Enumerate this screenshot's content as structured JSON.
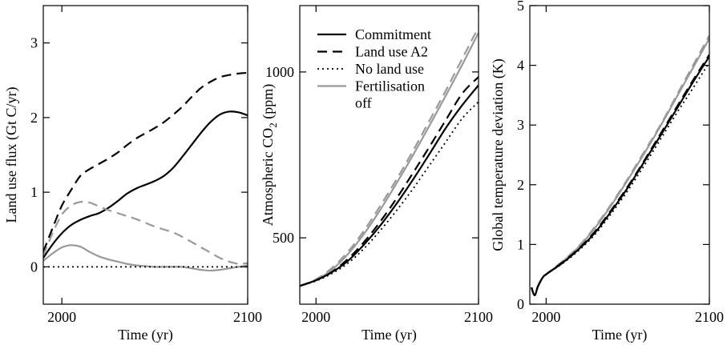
{
  "chart_data": [
    {
      "type": "line",
      "panel": "land-use-flux",
      "xlabel": "Time (yr)",
      "ylabel": "Land use flux (Gt C/yr)",
      "xlim": [
        1990,
        2100
      ],
      "ylim": [
        -0.5,
        3.5
      ],
      "xticks": [
        2000,
        2100
      ],
      "yticks": [
        0,
        1,
        2,
        3
      ],
      "series": [
        {
          "name": "Land use A2",
          "style": "dashed",
          "color": "#000000",
          "x": [
            1990,
            1995,
            2000,
            2005,
            2010,
            2015,
            2020,
            2025,
            2030,
            2035,
            2040,
            2045,
            2050,
            2055,
            2060,
            2065,
            2070,
            2075,
            2080,
            2085,
            2090,
            2095,
            2100
          ],
          "y": [
            0.2,
            0.52,
            0.82,
            1.03,
            1.22,
            1.31,
            1.38,
            1.45,
            1.53,
            1.63,
            1.72,
            1.79,
            1.86,
            1.94,
            2.04,
            2.15,
            2.28,
            2.4,
            2.48,
            2.54,
            2.57,
            2.59,
            2.6
          ]
        },
        {
          "name": "Commitment",
          "style": "solid",
          "color": "#000000",
          "x": [
            1990,
            1995,
            2000,
            2005,
            2010,
            2015,
            2020,
            2025,
            2030,
            2035,
            2040,
            2045,
            2050,
            2055,
            2060,
            2065,
            2070,
            2075,
            2080,
            2085,
            2090,
            2095,
            2100
          ],
          "y": [
            0.12,
            0.3,
            0.45,
            0.56,
            0.63,
            0.68,
            0.72,
            0.79,
            0.88,
            0.98,
            1.05,
            1.1,
            1.15,
            1.22,
            1.33,
            1.48,
            1.64,
            1.8,
            1.94,
            2.04,
            2.08,
            2.07,
            2.03
          ]
        },
        {
          "name": "Fertilisation off (land use A2)",
          "style": "dashed",
          "color": "#999999",
          "x": [
            1990,
            1995,
            2000,
            2005,
            2010,
            2015,
            2020,
            2025,
            2030,
            2035,
            2040,
            2045,
            2050,
            2055,
            2060,
            2065,
            2070,
            2075,
            2080,
            2085,
            2090,
            2095,
            2100
          ],
          "y": [
            0.15,
            0.45,
            0.7,
            0.82,
            0.87,
            0.86,
            0.81,
            0.76,
            0.72,
            0.68,
            0.64,
            0.59,
            0.54,
            0.5,
            0.46,
            0.4,
            0.33,
            0.26,
            0.19,
            0.12,
            0.07,
            0.04,
            0.05
          ]
        },
        {
          "name": "Fertilisation off",
          "style": "solid",
          "color": "#999999",
          "x": [
            1990,
            1995,
            2000,
            2005,
            2010,
            2015,
            2020,
            2025,
            2030,
            2035,
            2040,
            2045,
            2050,
            2055,
            2060,
            2065,
            2070,
            2075,
            2080,
            2085,
            2090,
            2095,
            2100
          ],
          "y": [
            0.08,
            0.18,
            0.26,
            0.29,
            0.27,
            0.2,
            0.14,
            0.1,
            0.07,
            0.04,
            0.02,
            0.01,
            0.0,
            0.0,
            0.0,
            0.0,
            -0.02,
            -0.04,
            -0.05,
            -0.04,
            -0.02,
            0.0,
            0.02
          ]
        },
        {
          "name": "No land use",
          "style": "dotted",
          "color": "#000000",
          "x": [
            1990,
            2100
          ],
          "y": [
            0,
            0
          ]
        }
      ]
    },
    {
      "type": "line",
      "panel": "co2",
      "xlabel": "Time (yr)",
      "ylabel_main": "Atmospheric CO",
      "ylabel_sub": "2",
      "ylabel_unit": " (ppm)",
      "xlim": [
        1990,
        2100
      ],
      "ylim": [
        300,
        1200
      ],
      "xticks": [
        2000,
        2100
      ],
      "yticks": [
        500,
        1000
      ],
      "legend": {
        "position": "top-left",
        "entries": [
          {
            "label": "Commitment",
            "style": "solid",
            "color": "#000000"
          },
          {
            "label": "Land use A2",
            "style": "dashed",
            "color": "#000000"
          },
          {
            "label": "No land use",
            "style": "dotted",
            "color": "#000000"
          },
          {
            "label_line1": "Fertilisation",
            "label_line2": "off",
            "style": "solid",
            "color": "#999999"
          }
        ]
      },
      "series": [
        {
          "name": "Fertilisation off (land use A2)",
          "style": "dashed",
          "color": "#999999",
          "x": [
            1990,
            2000,
            2010,
            2020,
            2030,
            2040,
            2050,
            2060,
            2070,
            2080,
            2090,
            2100
          ],
          "y": [
            355,
            375,
            410,
            460,
            525,
            600,
            680,
            765,
            855,
            945,
            1040,
            1135
          ]
        },
        {
          "name": "Fertilisation off",
          "style": "solid",
          "color": "#999999",
          "x": [
            1990,
            2000,
            2010,
            2020,
            2030,
            2040,
            2050,
            2060,
            2070,
            2080,
            2090,
            2100
          ],
          "y": [
            355,
            373,
            405,
            453,
            515,
            588,
            668,
            752,
            840,
            930,
            1022,
            1118
          ]
        },
        {
          "name": "Land use A2",
          "style": "dashed",
          "color": "#000000",
          "x": [
            1990,
            2000,
            2010,
            2020,
            2030,
            2040,
            2050,
            2060,
            2070,
            2080,
            2090,
            2100
          ],
          "y": [
            355,
            372,
            398,
            438,
            490,
            552,
            622,
            698,
            776,
            856,
            935,
            985
          ]
        },
        {
          "name": "Commitment",
          "style": "solid",
          "color": "#000000",
          "x": [
            1990,
            2000,
            2010,
            2020,
            2030,
            2040,
            2050,
            2060,
            2070,
            2080,
            2090,
            2100
          ],
          "y": [
            355,
            372,
            397,
            432,
            482,
            540,
            606,
            678,
            754,
            832,
            900,
            960
          ]
        },
        {
          "name": "No land use",
          "style": "dotted",
          "color": "#000000",
          "x": [
            1990,
            2000,
            2010,
            2020,
            2030,
            2040,
            2050,
            2060,
            2070,
            2080,
            2090,
            2100
          ],
          "y": [
            355,
            370,
            393,
            425,
            470,
            525,
            585,
            650,
            720,
            790,
            860,
            910
          ]
        }
      ]
    },
    {
      "type": "line",
      "panel": "temperature",
      "xlabel": "Time (yr)",
      "ylabel": "Global temperature deviation (K)",
      "xlim": [
        1990,
        2100
      ],
      "ylim": [
        0,
        5
      ],
      "xticks": [
        2000,
        2100
      ],
      "yticks": [
        0,
        1,
        2,
        3,
        4,
        5
      ],
      "series": [
        {
          "name": "Fertilisation off (land use A2)",
          "style": "dashed",
          "color": "#999999",
          "x": [
            1991,
            1993,
            1995,
            1998,
            2000,
            2010,
            2020,
            2030,
            2040,
            2050,
            2060,
            2070,
            2080,
            2090,
            2100
          ],
          "y": [
            0.28,
            0.15,
            0.3,
            0.45,
            0.5,
            0.72,
            0.97,
            1.3,
            1.68,
            2.1,
            2.55,
            3.0,
            3.5,
            4.0,
            4.5
          ]
        },
        {
          "name": "Fertilisation off",
          "style": "solid",
          "color": "#999999",
          "x": [
            1991,
            1993,
            1995,
            1998,
            2000,
            2010,
            2020,
            2030,
            2040,
            2050,
            2060,
            2070,
            2080,
            2090,
            2100
          ],
          "y": [
            0.28,
            0.15,
            0.3,
            0.45,
            0.5,
            0.71,
            0.96,
            1.28,
            1.66,
            2.08,
            2.52,
            2.98,
            3.47,
            3.96,
            4.45
          ]
        },
        {
          "name": "Land use A2",
          "style": "dashed",
          "color": "#000000",
          "x": [
            1991,
            1993,
            1995,
            1998,
            2000,
            2010,
            2020,
            2030,
            2040,
            2050,
            2060,
            2070,
            2080,
            2090,
            2100
          ],
          "y": [
            0.28,
            0.15,
            0.3,
            0.45,
            0.5,
            0.7,
            0.93,
            1.22,
            1.58,
            1.97,
            2.4,
            2.85,
            3.3,
            3.75,
            4.18
          ]
        },
        {
          "name": "Commitment",
          "style": "solid",
          "color": "#000000",
          "x": [
            1991,
            1993,
            1995,
            1998,
            2000,
            2010,
            2020,
            2030,
            2040,
            2050,
            2060,
            2070,
            2080,
            2090,
            2100
          ],
          "y": [
            0.28,
            0.15,
            0.3,
            0.45,
            0.5,
            0.69,
            0.92,
            1.2,
            1.56,
            1.95,
            2.38,
            2.82,
            3.27,
            3.72,
            4.15
          ]
        },
        {
          "name": "No land use",
          "style": "dotted",
          "color": "#000000",
          "x": [
            1991,
            1993,
            1995,
            1998,
            2000,
            2010,
            2020,
            2030,
            2040,
            2050,
            2060,
            2070,
            2080,
            2090,
            2100
          ],
          "y": [
            0.28,
            0.15,
            0.3,
            0.45,
            0.5,
            0.68,
            0.9,
            1.17,
            1.52,
            1.9,
            2.32,
            2.76,
            3.2,
            3.62,
            4.05
          ]
        }
      ]
    }
  ]
}
